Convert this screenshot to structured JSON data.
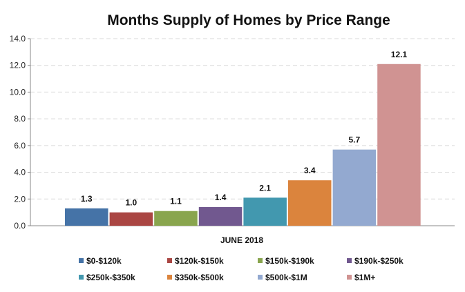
{
  "chart_data": {
    "type": "bar",
    "title": "Months Supply of Homes by Price Range",
    "categories": [
      "JUNE 2018"
    ],
    "xlabel": "",
    "ylabel": "",
    "ylim": [
      0,
      14
    ],
    "yticks": [
      "0.0",
      "2.0",
      "4.0",
      "6.0",
      "8.0",
      "10.0",
      "12.0",
      "14.0"
    ],
    "grid": true,
    "legend_position": "bottom",
    "series": [
      {
        "name": "$0-$120k",
        "values": [
          1.3
        ],
        "label": "1.3",
        "color": "#4573a7"
      },
      {
        "name": "$120k-$150k",
        "values": [
          1.0
        ],
        "label": "1.0",
        "color": "#aa4643"
      },
      {
        "name": "$150k-$190k",
        "values": [
          1.1
        ],
        "label": "1.1",
        "color": "#89a54e"
      },
      {
        "name": "$190k-$250k",
        "values": [
          1.4
        ],
        "label": "1.4",
        "color": "#71588f"
      },
      {
        "name": "$250k-$350k",
        "values": [
          2.1
        ],
        "label": "2.1",
        "color": "#4298af"
      },
      {
        "name": "$350k-$500k",
        "values": [
          3.4
        ],
        "label": "3.4",
        "color": "#db843d"
      },
      {
        "name": "$500k-$1M",
        "values": [
          5.7
        ],
        "label": "5.7",
        "color": "#93a9d0"
      },
      {
        "name": "$1M+",
        "values": [
          12.1
        ],
        "label": "12.1",
        "color": "#d09392"
      }
    ]
  }
}
